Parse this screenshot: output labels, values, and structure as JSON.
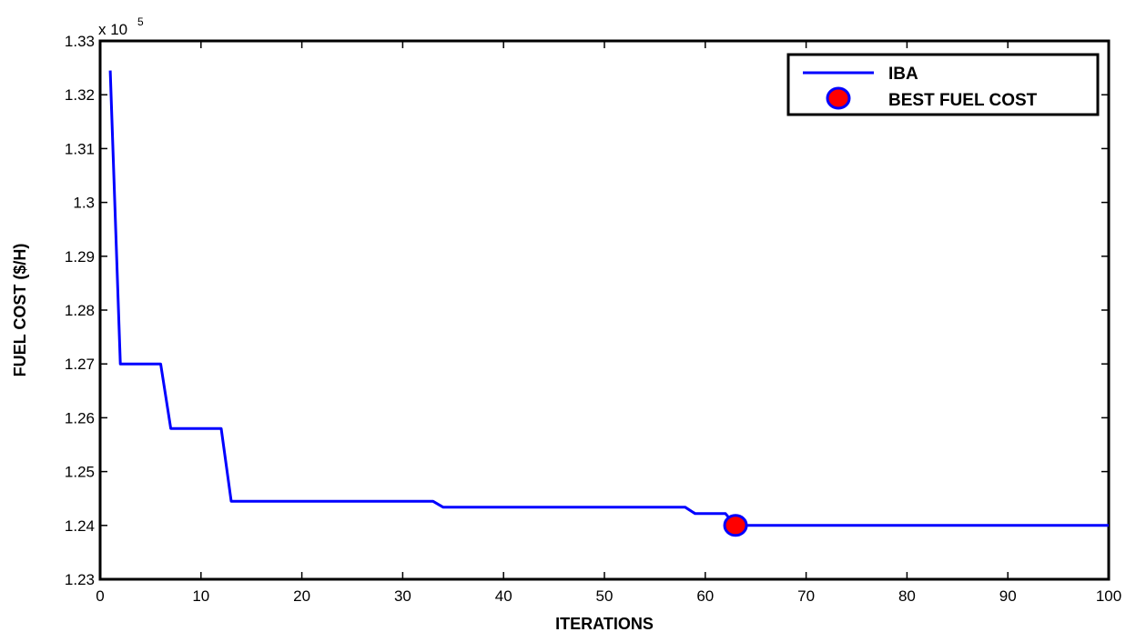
{
  "chart_data": {
    "type": "line",
    "xlabel": "ITERATIONS",
    "ylabel": "FUEL COST ($/H)",
    "xlim": [
      0,
      100
    ],
    "ylim": [
      1.23,
      1.33
    ],
    "y_multiplier_label": "x 10",
    "y_multiplier_exponent": "5",
    "xticks": [
      "0",
      "10",
      "20",
      "30",
      "40",
      "50",
      "60",
      "70",
      "80",
      "90",
      "100"
    ],
    "yticks": [
      "1.23",
      "1.24",
      "1.25",
      "1.26",
      "1.27",
      "1.28",
      "1.29",
      "1.3",
      "1.31",
      "1.32",
      "1.33"
    ],
    "grid": false,
    "legend_position": "top-right",
    "series": [
      {
        "name": "IBA",
        "color": "#0000ff",
        "x": [
          1,
          2,
          6,
          7,
          12,
          13,
          33,
          34,
          58,
          59,
          62,
          63,
          100
        ],
        "y": [
          1.3245,
          1.27,
          1.27,
          1.258,
          1.258,
          1.2445,
          1.2445,
          1.2434,
          1.2434,
          1.2422,
          1.2422,
          1.24,
          1.24
        ]
      }
    ],
    "markers": [
      {
        "name": "BEST FUEL COST",
        "x": 63,
        "y": 1.24,
        "fill": "#ff0000",
        "edge": "#0000ff"
      }
    ]
  }
}
